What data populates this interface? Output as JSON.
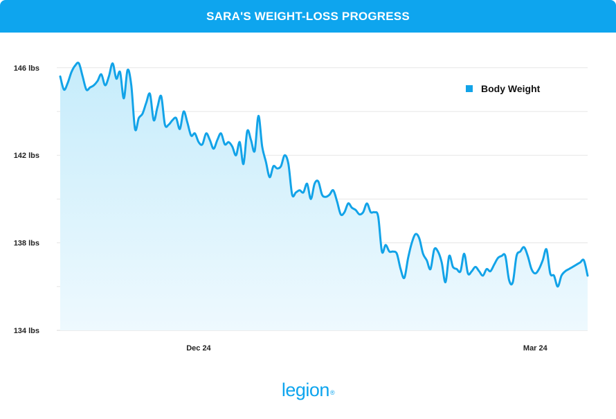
{
  "header": {
    "title": "SARA'S WEIGHT-LOSS PROGRESS"
  },
  "brand": {
    "name": "legion",
    "mark": "®"
  },
  "colors": {
    "header": "#0ea5ee",
    "line": "#12a3e8",
    "fill_top": "#c6ecfb",
    "fill_bottom": "#eef9fe",
    "grid": "#e5e5e5",
    "text": "#222222"
  },
  "chart_data": {
    "type": "area",
    "title": "SARA'S WEIGHT-LOSS PROGRESS",
    "xlabel": "",
    "ylabel": "",
    "ylim": [
      134,
      146.5
    ],
    "y_ticks": [
      {
        "value": 134,
        "label": "134 lbs"
      },
      {
        "value": 138,
        "label": "138 lbs"
      },
      {
        "value": 142,
        "label": "142 lbs"
      },
      {
        "value": 146,
        "label": "146 lbs"
      }
    ],
    "x_ticks": [
      {
        "x": 37,
        "label": "Dec 24"
      },
      {
        "x": 127,
        "label": "Mar 24"
      }
    ],
    "x_range": [
      0,
      141
    ],
    "grid": true,
    "legend_position": "top-right",
    "series": [
      {
        "name": "Body Weight",
        "color": "#12a3e8",
        "x": [
          0,
          1,
          2,
          3,
          4,
          5,
          6,
          7,
          8,
          9,
          10,
          11,
          12,
          13,
          14,
          15,
          16,
          17,
          18,
          19,
          20,
          21,
          22,
          23,
          24,
          25,
          26,
          27,
          28,
          29,
          30,
          31,
          32,
          33,
          34,
          35,
          36,
          37,
          38,
          39,
          40,
          41,
          42,
          43,
          44,
          45,
          46,
          47,
          48,
          49,
          50,
          51,
          52,
          53,
          54,
          55,
          56,
          57,
          58,
          59,
          60,
          61,
          62,
          63,
          64,
          65,
          66,
          67,
          68,
          69,
          70,
          71,
          72,
          73,
          74,
          75,
          76,
          77,
          78,
          79,
          80,
          81,
          82,
          83,
          84,
          85,
          86,
          87,
          88,
          89,
          90,
          91,
          92,
          93,
          94,
          95,
          96,
          97,
          98,
          99,
          100,
          101,
          102,
          103,
          104,
          105,
          106,
          107,
          108,
          109,
          110,
          111,
          112,
          113,
          114,
          115,
          116,
          117,
          118,
          119,
          120,
          121,
          122,
          123,
          124,
          125,
          126,
          127,
          128,
          129,
          130,
          131,
          132,
          133,
          134,
          135,
          136,
          137,
          138,
          139,
          140,
          141
        ],
        "values": [
          145.6,
          145.0,
          145.3,
          145.8,
          146.1,
          146.2,
          145.6,
          145.0,
          145.1,
          145.2,
          145.4,
          145.7,
          145.2,
          145.6,
          146.2,
          145.5,
          145.8,
          144.6,
          145.9,
          145.2,
          143.2,
          143.7,
          143.9,
          144.4,
          144.8,
          143.6,
          144.2,
          144.7,
          143.4,
          143.4,
          143.6,
          143.7,
          143.2,
          144.0,
          143.5,
          142.9,
          143.0,
          142.6,
          142.5,
          143.0,
          142.7,
          142.3,
          142.7,
          143.0,
          142.5,
          142.6,
          142.4,
          142.0,
          142.6,
          141.6,
          143.1,
          142.7,
          142.2,
          143.8,
          142.4,
          141.7,
          141.0,
          141.5,
          141.4,
          141.5,
          142.0,
          141.6,
          140.2,
          140.3,
          140.4,
          140.3,
          140.7,
          140.0,
          140.7,
          140.8,
          140.2,
          140.1,
          140.2,
          140.4,
          139.9,
          139.3,
          139.4,
          139.8,
          139.6,
          139.5,
          139.3,
          139.4,
          139.8,
          139.4,
          139.4,
          139.2,
          137.6,
          137.9,
          137.6,
          137.6,
          137.5,
          136.8,
          136.4,
          137.3,
          138.0,
          138.4,
          138.2,
          137.5,
          137.2,
          136.8,
          137.7,
          137.6,
          137.1,
          136.2,
          137.4,
          136.9,
          136.8,
          136.7,
          137.5,
          136.6,
          136.7,
          136.9,
          136.7,
          136.5,
          136.8,
          136.7,
          137.0,
          137.3,
          137.4,
          137.4,
          136.3,
          136.2,
          137.4,
          137.6,
          137.8,
          137.4,
          136.8,
          136.6,
          136.8,
          137.2,
          137.7,
          136.6,
          136.5,
          136.0,
          136.5,
          136.7,
          136.8,
          136.9,
          137.0,
          137.1,
          137.2,
          136.5
        ]
      }
    ]
  }
}
